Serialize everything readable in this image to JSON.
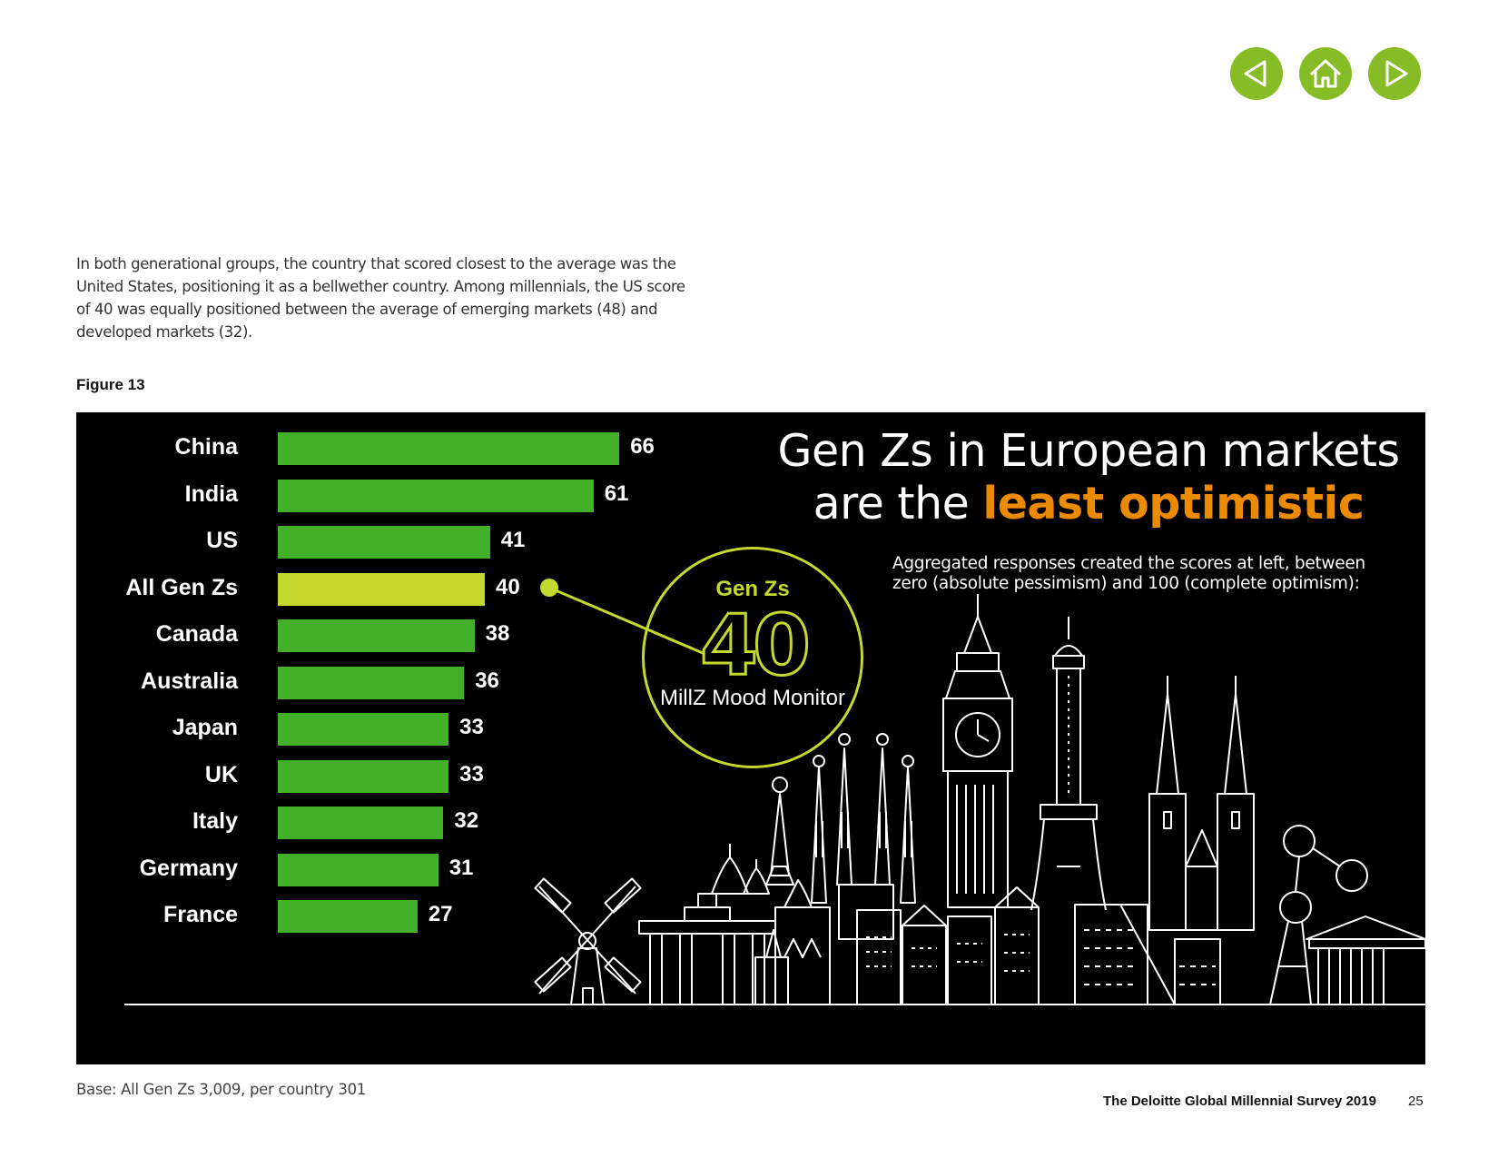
{
  "nav": {
    "prev_icon": "triangle-left-icon",
    "home_icon": "home-icon",
    "next_icon": "triangle-right-icon",
    "color": "#86bc25"
  },
  "intro": "In both generational groups, the country that scored closest to the average was the United States, positioning it as a bellwether country. Among millennials, the US score of 40 was equally positioned between the average of emerging markets (48) and developed markets (32).",
  "figure_label": "Figure 13",
  "headline": {
    "line1": "Gen Zs in European markets",
    "line2_prefix": "are the ",
    "line2_accent": "least optimistic",
    "accent_color": "#ed8b00"
  },
  "note": "Aggregated responses created the scores at left, between zero (absolute pessimism) and 100 (complete optimism):",
  "monitor": {
    "label_top": "Gen Zs",
    "score": "40",
    "label_bottom": "MillZ Mood Monitor",
    "color": "#c4d82e"
  },
  "chart_data": {
    "type": "bar",
    "orientation": "horizontal",
    "categories": [
      "China",
      "India",
      "US",
      "All Gen Zs",
      "Canada",
      "Australia",
      "Japan",
      "UK",
      "Italy",
      "Germany",
      "France"
    ],
    "values": [
      66,
      61,
      41,
      40,
      38,
      36,
      33,
      33,
      32,
      31,
      27
    ],
    "highlight": "All Gen Zs",
    "bar_color": "#43b02a",
    "highlight_color": "#c4d82e",
    "grid": false
  },
  "footer": {
    "base": "Base: All Gen Zs  3,009, per country 301",
    "title": "The Deloitte Global Millennial Survey 2019",
    "page": "25"
  }
}
